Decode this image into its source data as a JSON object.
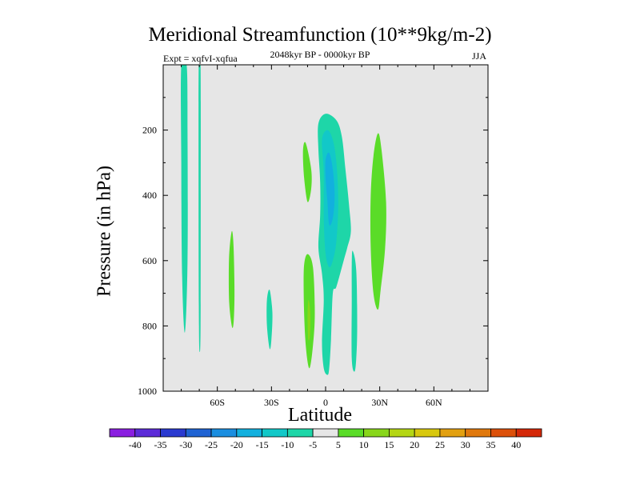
{
  "chart_data": {
    "type": "contour",
    "title": "Meridional Streamfunction (10**9kg/m-2)",
    "subtitle": "2048kyr BP - 0000kyr BP",
    "experiment_label": "Expt = xqfvI-xqfua",
    "season": "JJA",
    "xlabel": "Latitude",
    "ylabel": "Pressure (in hPa)",
    "xlim": [
      -90,
      90
    ],
    "ylim": [
      1000,
      0
    ],
    "x_ticks": [
      {
        "value": -60,
        "label": "60S"
      },
      {
        "value": -30,
        "label": "30S"
      },
      {
        "value": 0,
        "label": "0"
      },
      {
        "value": 30,
        "label": "30N"
      },
      {
        "value": 60,
        "label": "60N"
      }
    ],
    "y_ticks": [
      {
        "value": 200,
        "label": "200"
      },
      {
        "value": 400,
        "label": "400"
      },
      {
        "value": 600,
        "label": "600"
      },
      {
        "value": 800,
        "label": "800"
      },
      {
        "value": 1000,
        "label": "1000"
      }
    ],
    "background_color": "#e6e6e6",
    "colorbar": {
      "levels": [
        "-40",
        "-35",
        "-30",
        "-25",
        "-20",
        "-15",
        "-10",
        "-5",
        "5",
        "10",
        "15",
        "20",
        "25",
        "30",
        "35",
        "40"
      ],
      "colors": [
        "#8a1ee0",
        "#5c2bd8",
        "#2a3ad0",
        "#1f63d3",
        "#1a8ee0",
        "#12b0de",
        "#12c8c8",
        "#1ed6a8",
        "#e6e6e6",
        "#5adc28",
        "#88d61a",
        "#b4d614",
        "#d8c80e",
        "#e2a010",
        "#e0780c",
        "#dc500a",
        "#d42808"
      ]
    },
    "regions": [
      {
        "name": "sh-upper-cell-narrow",
        "value": -5,
        "color": "#1ed6a8",
        "outline": [
          [
            -80,
            0
          ],
          [
            -77,
            0
          ],
          [
            -76.5,
            200
          ],
          [
            -76.5,
            600
          ],
          [
            -78,
            820
          ],
          [
            -79.5,
            650
          ],
          [
            -80,
            300
          ]
        ]
      },
      {
        "name": "sh-thin-streak",
        "value": -5,
        "color": "#1ed6a8",
        "outline": [
          [
            -70.3,
            0
          ],
          [
            -69.3,
            0
          ],
          [
            -69.2,
            400
          ],
          [
            -69.3,
            800
          ],
          [
            -69.7,
            880
          ],
          [
            -70.2,
            800
          ],
          [
            -70.4,
            400
          ]
        ]
      },
      {
        "name": "sh-midlat-cell",
        "value": 5,
        "color": "#5adc28",
        "outline": [
          [
            -52,
            510
          ],
          [
            -51,
            560
          ],
          [
            -50.5,
            700
          ],
          [
            -51,
            790
          ],
          [
            -52,
            800
          ],
          [
            -53.5,
            720
          ],
          [
            -53.5,
            590
          ]
        ]
      },
      {
        "name": "sh-subtropical-cell",
        "value": -5,
        "color": "#1ed6a8",
        "outline": [
          [
            -31,
            690
          ],
          [
            -29.5,
            760
          ],
          [
            -30,
            840
          ],
          [
            -31,
            870
          ],
          [
            -32.5,
            800
          ],
          [
            -32.5,
            720
          ]
        ]
      },
      {
        "name": "sh-upper-green",
        "value": 5,
        "color": "#5adc28",
        "outline": [
          [
            -11,
            240
          ],
          [
            -8,
            320
          ],
          [
            -8,
            380
          ],
          [
            -10,
            420
          ],
          [
            -12,
            340
          ],
          [
            -12.5,
            260
          ]
        ]
      },
      {
        "name": "sh-lower-green",
        "value": 5,
        "color": "#5adc28",
        "outline": [
          [
            -10,
            580
          ],
          [
            -7,
            620
          ],
          [
            -6,
            760
          ],
          [
            -7,
            860
          ],
          [
            -9,
            930
          ],
          [
            -11,
            860
          ],
          [
            -12,
            740
          ],
          [
            -12,
            620
          ]
        ]
      },
      {
        "name": "sh-lower-green-core",
        "value": 10,
        "color": "#88d61a",
        "outline": [
          [
            -9.5,
            720
          ],
          [
            -8.5,
            760
          ],
          [
            -8.7,
            830
          ],
          [
            -9.6,
            840
          ],
          [
            -10,
            770
          ]
        ]
      },
      {
        "name": "equatorial-cell",
        "value": -5,
        "color": "#1ed6a8",
        "outline": [
          [
            -4,
            180
          ],
          [
            0,
            150
          ],
          [
            6,
            170
          ],
          [
            9,
            220
          ],
          [
            11,
            320
          ],
          [
            13,
            430
          ],
          [
            14,
            510
          ],
          [
            12,
            560
          ],
          [
            10,
            600
          ],
          [
            6,
            680
          ],
          [
            4,
            700
          ],
          [
            3,
            840
          ],
          [
            2,
            930
          ],
          [
            1,
            950
          ],
          [
            -1,
            930
          ],
          [
            -2,
            850
          ],
          [
            -1,
            720
          ],
          [
            -2,
            640
          ],
          [
            -4,
            560
          ],
          [
            -3,
            460
          ],
          [
            -3,
            360
          ],
          [
            -4,
            260
          ]
        ]
      },
      {
        "name": "equatorial-cell-core",
        "value": -10,
        "color": "#12c8c8",
        "outline": [
          [
            -2,
            230
          ],
          [
            1,
            200
          ],
          [
            4,
            230
          ],
          [
            6,
            300
          ],
          [
            7,
            420
          ],
          [
            6,
            540
          ],
          [
            4,
            600
          ],
          [
            2,
            620
          ],
          [
            0,
            580
          ],
          [
            -1,
            470
          ],
          [
            -1,
            330
          ]
        ]
      },
      {
        "name": "equatorial-cell-inner",
        "value": -15,
        "color": "#12b0de",
        "outline": [
          [
            0,
            290
          ],
          [
            2,
            270
          ],
          [
            4,
            320
          ],
          [
            5,
            400
          ],
          [
            4,
            470
          ],
          [
            2,
            490
          ],
          [
            1,
            420
          ],
          [
            0,
            350
          ]
        ]
      },
      {
        "name": "nh-lower-cell",
        "value": -5,
        "color": "#1ed6a8",
        "outline": [
          [
            15,
            570
          ],
          [
            17,
            630
          ],
          [
            17.5,
            800
          ],
          [
            17,
            900
          ],
          [
            16,
            940
          ],
          [
            14.5,
            900
          ],
          [
            14.5,
            720
          ],
          [
            14.5,
            610
          ]
        ]
      },
      {
        "name": "nh-tropical-green",
        "value": 5,
        "color": "#5adc28",
        "outline": [
          [
            29,
            210
          ],
          [
            31,
            260
          ],
          [
            33.5,
            420
          ],
          [
            33,
            560
          ],
          [
            30.5,
            690
          ],
          [
            29,
            750
          ],
          [
            26.5,
            700
          ],
          [
            25,
            560
          ],
          [
            25,
            400
          ],
          [
            26.5,
            280
          ]
        ]
      }
    ]
  }
}
